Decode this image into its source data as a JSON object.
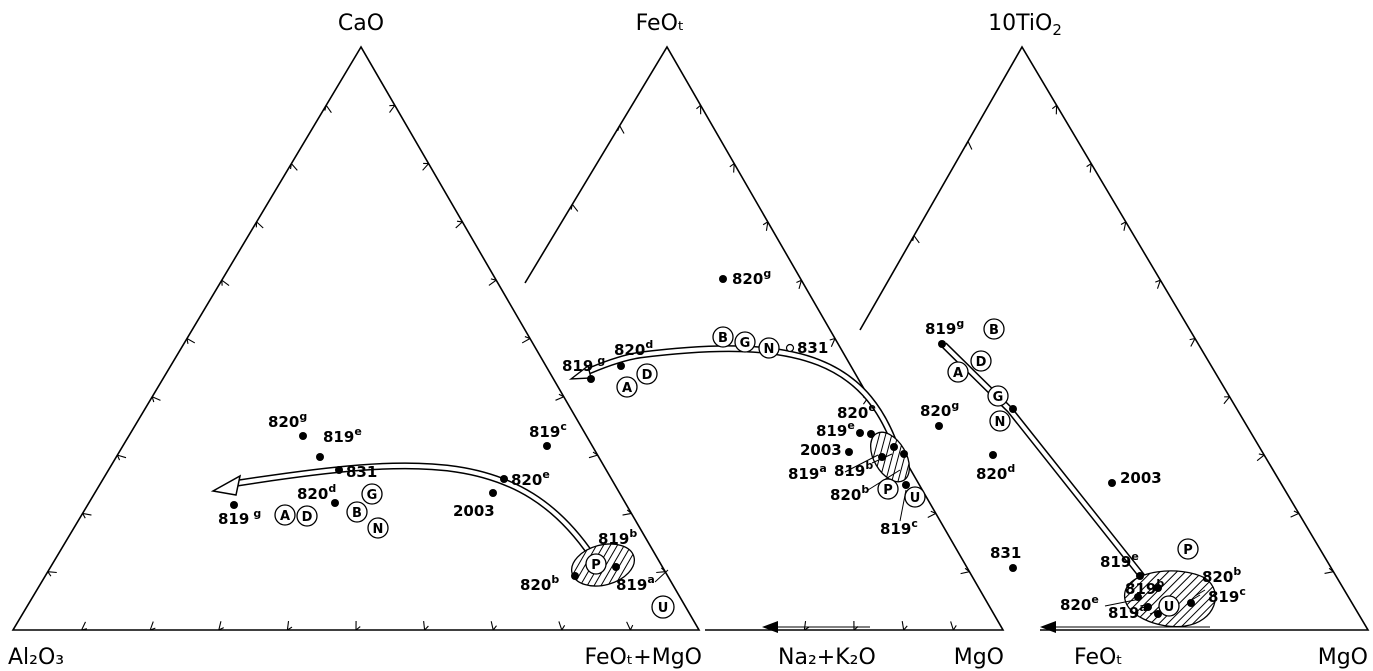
{
  "triangles": [
    {
      "top": "CaO",
      "left": "Al₂O₃",
      "right": "FeOₜ+MgO"
    },
    {
      "top": "FeOₜ",
      "left": "Na₂+K₂O",
      "right": "MgO"
    },
    {
      "top": "10TiO₂",
      "left": "FeOₜ",
      "right": "MgO"
    }
  ],
  "samples": [
    {
      "base": "820",
      "sup": "g"
    },
    {
      "base": "819",
      "sup": "e"
    },
    {
      "base": "831",
      "sup": ""
    },
    {
      "base": "820",
      "sup": "d"
    },
    {
      "base": "819",
      "sup": "g"
    },
    {
      "base": "819",
      "sup": "c"
    },
    {
      "base": "820",
      "sup": "e"
    },
    {
      "base": "2003",
      "sup": ""
    },
    {
      "base": "819",
      "sup": "b"
    },
    {
      "base": "820",
      "sup": "b"
    },
    {
      "base": "819",
      "sup": "a"
    }
  ],
  "circled": [
    "A",
    "D",
    "B",
    "G",
    "N",
    "P",
    "U"
  ]
}
